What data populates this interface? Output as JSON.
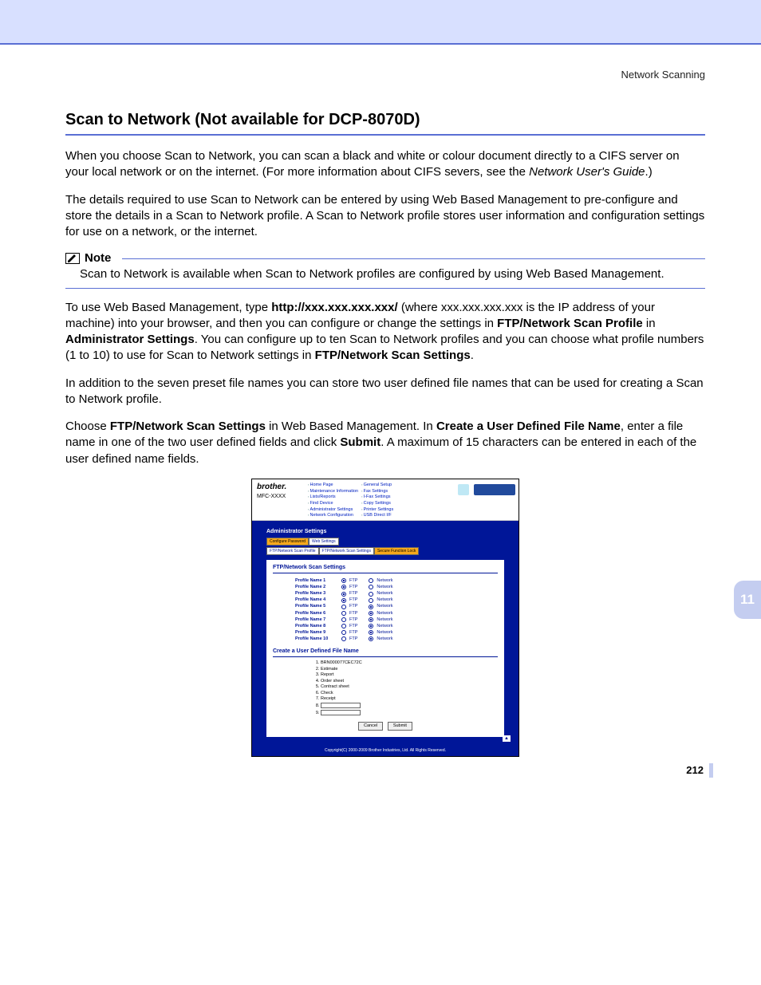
{
  "header": {
    "running": "Network Scanning"
  },
  "title": "Scan to Network (Not available for DCP-8070D)",
  "p1_a": "When you choose Scan to Network, you can scan a black and white or colour document directly to a CIFS server on your local network or on the internet. (For more information about CIFS severs, see the ",
  "p1_b": "Network User's Guide",
  "p1_c": ".)",
  "p2": "The details required to use Scan to Network can be entered by using Web Based Management to pre-configure and store the details in a Scan to Network profile. A Scan to Network profile stores user information and configuration settings for use on a network, or the internet.",
  "note": {
    "label": "Note",
    "body": "Scan to Network is available when Scan to Network profiles are configured by using Web Based Management."
  },
  "p3_a": "To use Web Based Management, type ",
  "p3_b": "http://xxx.xxx.xxx.xxx/",
  "p3_c": " (where xxx.xxx.xxx.xxx is the IP address of your machine) into your browser, and then you can configure or change the settings in ",
  "p3_d": "FTP/Network Scan Profile",
  "p3_e": " in ",
  "p3_f": "Administrator Settings",
  "p3_g": ". You can configure up to ten Scan to Network profiles and you can choose what profile numbers (1 to 10) to use for Scan to Network settings in ",
  "p3_h": "FTP/Network Scan Settings",
  "p3_i": ".",
  "p4": "In addition to the seven preset file names you can store two user defined file names that can be used for creating a Scan to Network profile.",
  "p5_a": "Choose ",
  "p5_b": "FTP/Network Scan Settings",
  "p5_c": " in Web Based Management. In ",
  "p5_d": "Create a User Defined File Name",
  "p5_e": ", enter a file name in one of the two user defined fields and click ",
  "p5_f": "Submit",
  "p5_g": ". A maximum of 15 characters can be entered in each of the user defined name fields.",
  "chapter": "11",
  "pagenum": "212",
  "shot": {
    "brand": "brother.",
    "model": "MFC-XXXX",
    "navL": [
      "Home Page",
      "Maintenance Information",
      "Lists/Reports",
      "Find Device",
      "Administrator Settings",
      "Network Configuration"
    ],
    "navR": [
      "General Setup",
      "Fax Settings",
      "I-Fax Settings",
      "Copy Settings",
      "Printer Settings",
      "USB Direct I/F"
    ],
    "adminHeader": "Administrator Settings",
    "tabWeb": "Web Settings",
    "tabConfig": "Configure Password",
    "subtabs": [
      "FTP/Network Scan Profile",
      "FTP/Network Scan Settings",
      "Secure Function Lock"
    ],
    "panelTitle": "FTP/Network Scan Settings",
    "profiles": [
      {
        "n": "Profile Name 1",
        "ftp": true
      },
      {
        "n": "Profile Name 2",
        "ftp": true
      },
      {
        "n": "Profile Name 3",
        "ftp": true
      },
      {
        "n": "Profile Name 4",
        "ftp": true
      },
      {
        "n": "Profile Name 5",
        "ftp": false
      },
      {
        "n": "Profile Name 6",
        "ftp": false
      },
      {
        "n": "Profile Name 7",
        "ftp": false
      },
      {
        "n": "Profile Name 8",
        "ftp": false
      },
      {
        "n": "Profile Name 9",
        "ftp": false
      },
      {
        "n": "Profile Name 10",
        "ftp": false
      }
    ],
    "optFTP": "FTP",
    "optNet": "Network",
    "udfnTitle": "Create a User Defined File Name",
    "presets": [
      "BRN000077CEC72C",
      "Estimate",
      "Report",
      "Order sheet",
      "Contract sheet",
      "Check",
      "Receipt"
    ],
    "btnCancel": "Cancel",
    "btnSubmit": "Submit",
    "copyright": "Copyright(C) 2000-2009 Brother Industries, Ltd. All Rights Reserved."
  }
}
